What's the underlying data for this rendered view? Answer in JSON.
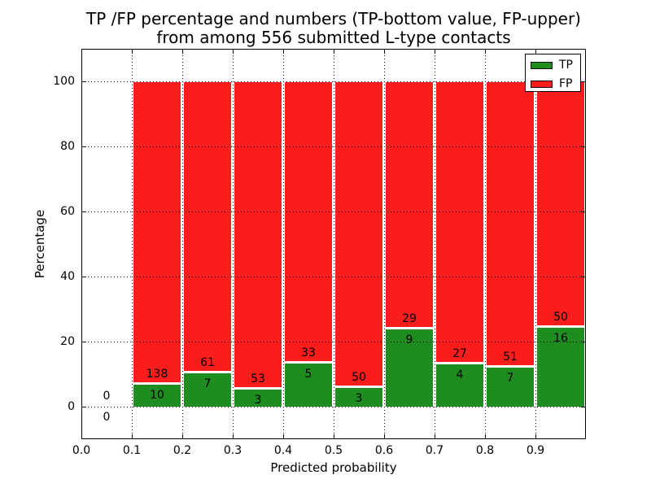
{
  "figure": {
    "title_line1": "TP /FP percentage and numbers (TP-bottom value, FP-upper)",
    "title_line2": "from among 556 submitted L-type contacts"
  },
  "axes": {
    "xlabel": "Predicted probability",
    "ylabel": "Percentage",
    "x_tick_labels": [
      "0.0",
      "0.1",
      "0.2",
      "0.3",
      "0.4",
      "0.5",
      "0.6",
      "0.7",
      "0.8",
      "0.9"
    ],
    "x_tick_values": [
      0.0,
      0.1,
      0.2,
      0.3,
      0.4,
      0.5,
      0.6,
      0.7,
      0.8,
      0.9
    ],
    "y_tick_labels": [
      "0",
      "20",
      "40",
      "60",
      "80",
      "100"
    ],
    "y_tick_values": [
      0,
      20,
      40,
      60,
      80,
      100
    ]
  },
  "legend": {
    "items": [
      {
        "label": "TP",
        "color": "#1e8c1e"
      },
      {
        "label": "FP",
        "color": "#fb1c1c"
      }
    ]
  },
  "colors": {
    "tp_green": "#1e8c1e",
    "fp_red": "#fb1c1c",
    "axis_black": "#000000",
    "background": "#ffffff"
  },
  "chart_data": {
    "type": "bar",
    "stacked": true,
    "normalization": "each bar scaled to 100%, labels show raw counts",
    "title": "TP /FP percentage and numbers (TP-bottom value, FP-upper) from among 556 submitted L-type contacts",
    "xlabel": "Predicted probability",
    "ylabel": "Percentage",
    "xlim": [
      0.0,
      1.0
    ],
    "ylim": [
      -10,
      110
    ],
    "grid": true,
    "grid_style": "dotted",
    "legend_position": "upper right",
    "total_submitted": 556,
    "bin_width": 0.1,
    "bins": [
      {
        "x_start": 0.0,
        "x_end": 0.1,
        "tp_count": 0,
        "fp_count": 0,
        "tp_percent": 0.0
      },
      {
        "x_start": 0.1,
        "x_end": 0.2,
        "tp_count": 10,
        "fp_count": 138,
        "tp_percent": 6.76
      },
      {
        "x_start": 0.2,
        "x_end": 0.3,
        "tp_count": 7,
        "fp_count": 61,
        "tp_percent": 10.29
      },
      {
        "x_start": 0.3,
        "x_end": 0.4,
        "tp_count": 3,
        "fp_count": 53,
        "tp_percent": 5.36
      },
      {
        "x_start": 0.4,
        "x_end": 0.5,
        "tp_count": 5,
        "fp_count": 33,
        "tp_percent": 13.16
      },
      {
        "x_start": 0.5,
        "x_end": 0.6,
        "tp_count": 3,
        "fp_count": 50,
        "tp_percent": 5.66
      },
      {
        "x_start": 0.6,
        "x_end": 0.7,
        "tp_count": 9,
        "fp_count": 29,
        "tp_percent": 23.68
      },
      {
        "x_start": 0.7,
        "x_end": 0.8,
        "tp_count": 4,
        "fp_count": 27,
        "tp_percent": 12.9
      },
      {
        "x_start": 0.8,
        "x_end": 0.9,
        "tp_count": 7,
        "fp_count": 51,
        "tp_percent": 12.07
      },
      {
        "x_start": 0.9,
        "x_end": 1.0,
        "tp_count": 16,
        "fp_count": 50,
        "tp_percent": 24.24
      }
    ],
    "series": [
      {
        "name": "TP",
        "color": "#1e8c1e",
        "counts": [
          0,
          10,
          7,
          3,
          5,
          3,
          9,
          4,
          7,
          16
        ]
      },
      {
        "name": "FP",
        "color": "#fb1c1c",
        "counts": [
          0,
          138,
          61,
          53,
          33,
          50,
          29,
          27,
          51,
          50
        ]
      }
    ]
  }
}
